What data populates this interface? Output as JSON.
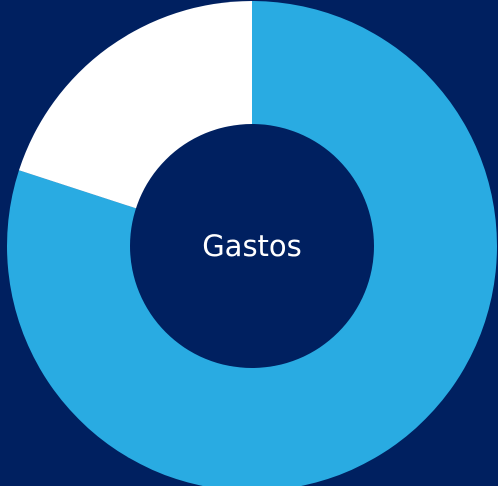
{
  "chart_data": {
    "type": "pie",
    "variant": "donut",
    "center_label": "Gastos",
    "slices": [
      {
        "value": 80,
        "color": "#29abe2"
      },
      {
        "value": 20,
        "color": "#ffffff"
      }
    ],
    "start_direction": "top",
    "order": "clockwise",
    "legend": "none"
  },
  "colors": {
    "background": "#002060",
    "hole": "#002060",
    "label": "#ffffff"
  }
}
